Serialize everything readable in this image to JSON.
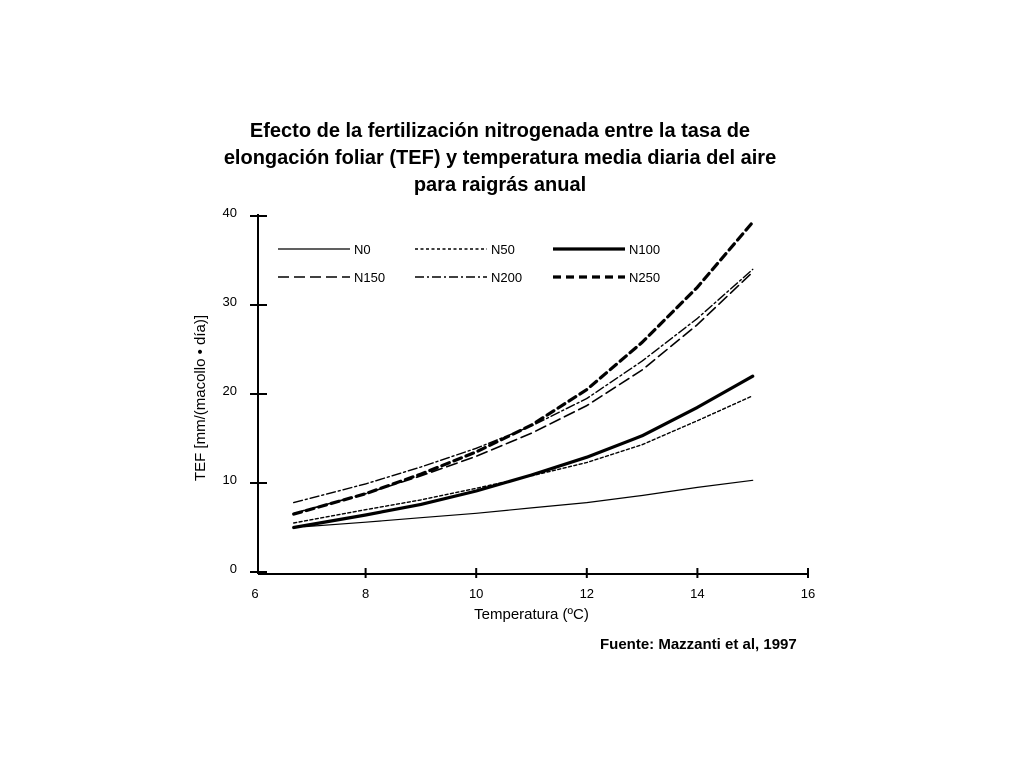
{
  "title": {
    "line1": "Efecto de la fertilización nitrogenada entre la tasa de",
    "line2": "elongación foliar (TEF) y temperatura media diaria del aire",
    "line3": "para raigrás anual"
  },
  "source": "Fuente: Mazzanti et al, 1997",
  "chart_data": {
    "type": "line",
    "xlabel": "Temperatura (ºC)",
    "ylabel": "TEF [mm/(macollo • día)]",
    "xlim": [
      6,
      16
    ],
    "ylim": [
      0,
      40
    ],
    "xticks": [
      6,
      8,
      10,
      12,
      14,
      16
    ],
    "yticks": [
      0,
      10,
      20,
      30,
      40
    ],
    "grid": false,
    "legend_position": "top-left",
    "x": [
      6.7,
      8,
      9,
      10,
      11,
      12,
      13,
      14,
      15
    ],
    "series": [
      {
        "name": "N0",
        "style": "solid-thin",
        "values": [
          5.0,
          5.6,
          6.1,
          6.6,
          7.2,
          7.8,
          8.6,
          9.5,
          10.3
        ]
      },
      {
        "name": "N50",
        "style": "dotted",
        "values": [
          5.5,
          7.0,
          8.1,
          9.4,
          10.8,
          12.3,
          14.3,
          17.0,
          19.8
        ]
      },
      {
        "name": "N100",
        "style": "solid-thick",
        "values": [
          5.0,
          6.4,
          7.6,
          9.1,
          10.9,
          12.9,
          15.3,
          18.5,
          22.0
        ]
      },
      {
        "name": "N150",
        "style": "long-dash",
        "values": [
          6.6,
          8.8,
          10.8,
          13.0,
          15.6,
          18.7,
          22.7,
          27.8,
          33.7
        ]
      },
      {
        "name": "N200",
        "style": "dash-dot",
        "values": [
          7.8,
          9.9,
          11.8,
          13.9,
          16.4,
          19.5,
          23.7,
          28.5,
          34.0
        ]
      },
      {
        "name": "N250",
        "style": "thick-dash",
        "values": [
          6.5,
          8.8,
          11.0,
          13.5,
          16.5,
          20.5,
          25.8,
          32.0,
          39.3
        ]
      }
    ]
  }
}
